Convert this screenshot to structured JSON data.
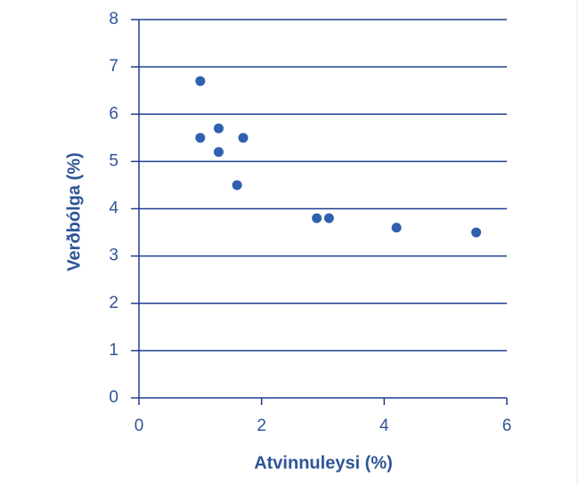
{
  "chart_data": {
    "type": "scatter",
    "x_label": "Atvinnuleysi (%)",
    "y_label": "Verðbólga (%)",
    "x": [
      1.0,
      1.0,
      1.3,
      1.3,
      1.7,
      1.6,
      2.9,
      3.1,
      4.2,
      5.5
    ],
    "values": [
      6.7,
      5.5,
      5.7,
      5.2,
      5.5,
      4.5,
      3.8,
      3.8,
      3.6,
      3.5
    ],
    "color": "#3060b0",
    "xlim": [
      0,
      6
    ],
    "xticks": [
      0,
      2,
      4,
      6
    ],
    "ylim": [
      0,
      8
    ],
    "yticks": [
      0,
      1,
      2,
      3,
      4,
      5,
      6,
      7,
      8
    ],
    "grid": true
  }
}
